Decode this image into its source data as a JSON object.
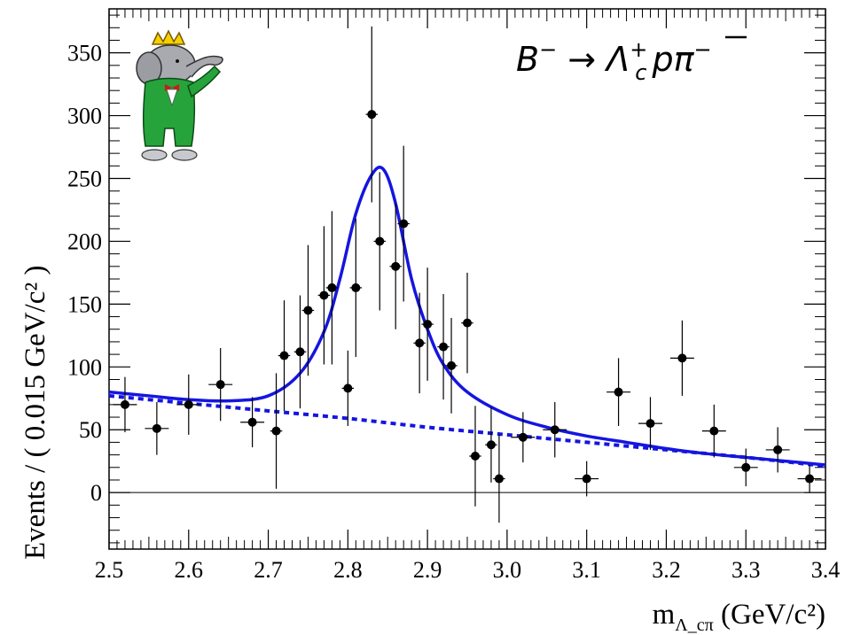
{
  "chart_data": {
    "type": "scatter",
    "title": "",
    "xlabel": {
      "main": "m",
      "sub": "Λ_cπ",
      "units": " (GeV/c²)"
    },
    "ylabel": "Events / ( 0.015 GeV/c² )",
    "xlim": [
      2.5,
      3.4
    ],
    "ylim": [
      -45,
      385
    ],
    "x_ticks": [
      "2.5",
      "2.6",
      "2.7",
      "2.8",
      "2.9",
      "3.0",
      "3.1",
      "3.2",
      "3.3",
      "3.4"
    ],
    "y_ticks": [
      "0",
      "50",
      "100",
      "150",
      "200",
      "250",
      "300",
      "350"
    ],
    "annotation": "B⁻ → Λ_c⁺ p̄ π⁻",
    "logo": "BaBar elephant",
    "colors": {
      "fit": "#1515e0",
      "points": "#000000"
    },
    "series": [
      {
        "kind": "data_points_with_errors",
        "points": [
          {
            "x": 2.52,
            "y": 70,
            "yerr": 22,
            "xerr": 0.015
          },
          {
            "x": 2.56,
            "y": 51,
            "yerr": 21,
            "xerr": 0.015
          },
          {
            "x": 2.6,
            "y": 70,
            "yerr": 24,
            "xerr": 0.015
          },
          {
            "x": 2.64,
            "y": 86,
            "yerr": 29,
            "xerr": 0.015
          },
          {
            "x": 2.68,
            "y": 56,
            "yerr": 20,
            "xerr": 0.015
          },
          {
            "x": 2.71,
            "y": 49,
            "yerr": 46,
            "xerr": 0.0075
          },
          {
            "x": 2.72,
            "y": 109,
            "yerr": 44,
            "xerr": 0.0075
          },
          {
            "x": 2.74,
            "y": 112,
            "yerr": 45,
            "xerr": 0.0075
          },
          {
            "x": 2.75,
            "y": 145,
            "yerr": 52,
            "xerr": 0.0075
          },
          {
            "x": 2.77,
            "y": 157,
            "yerr": 55,
            "xerr": 0.0075
          },
          {
            "x": 2.78,
            "y": 163,
            "yerr": 61,
            "xerr": 0.0075
          },
          {
            "x": 2.8,
            "y": 83,
            "yerr": 30,
            "xerr": 0.0075
          },
          {
            "x": 2.81,
            "y": 163,
            "yerr": 55,
            "xerr": 0.0075
          },
          {
            "x": 2.83,
            "y": 301,
            "yerr": 70,
            "xerr": 0.0075
          },
          {
            "x": 2.84,
            "y": 200,
            "yerr": 55,
            "xerr": 0.0075
          },
          {
            "x": 2.86,
            "y": 180,
            "yerr": 50,
            "xerr": 0.0075
          },
          {
            "x": 2.87,
            "y": 214,
            "yerr": 62,
            "xerr": 0.0075
          },
          {
            "x": 2.89,
            "y": 119,
            "yerr": 40,
            "xerr": 0.0075
          },
          {
            "x": 2.9,
            "y": 134,
            "yerr": 45,
            "xerr": 0.0075
          },
          {
            "x": 2.92,
            "y": 116,
            "yerr": 42,
            "xerr": 0.0075
          },
          {
            "x": 2.93,
            "y": 101,
            "yerr": 38,
            "xerr": 0.0075
          },
          {
            "x": 2.95,
            "y": 135,
            "yerr": 40,
            "xerr": 0.0075
          },
          {
            "x": 2.96,
            "y": 29,
            "yerr": 40,
            "xerr": 0.0075
          },
          {
            "x": 2.98,
            "y": 38,
            "yerr": 30,
            "xerr": 0.0075
          },
          {
            "x": 2.99,
            "y": 11,
            "yerr": 35,
            "xerr": 0.0075
          },
          {
            "x": 3.02,
            "y": 44,
            "yerr": 20,
            "xerr": 0.015
          },
          {
            "x": 3.06,
            "y": 50,
            "yerr": 22,
            "xerr": 0.015
          },
          {
            "x": 3.1,
            "y": 11,
            "yerr": 14,
            "xerr": 0.015
          },
          {
            "x": 3.14,
            "y": 80,
            "yerr": 27,
            "xerr": 0.015
          },
          {
            "x": 3.18,
            "y": 55,
            "yerr": 21,
            "xerr": 0.015
          },
          {
            "x": 3.22,
            "y": 107,
            "yerr": 30,
            "xerr": 0.015
          },
          {
            "x": 3.26,
            "y": 49,
            "yerr": 21,
            "xerr": 0.015
          },
          {
            "x": 3.3,
            "y": 20,
            "yerr": 15,
            "xerr": 0.015
          },
          {
            "x": 3.34,
            "y": 34,
            "yerr": 18,
            "xerr": 0.015
          },
          {
            "x": 3.38,
            "y": 11,
            "yerr": 11,
            "xerr": 0.015
          }
        ]
      },
      {
        "kind": "fit_total_solid",
        "x": [
          2.5,
          2.55,
          2.6,
          2.65,
          2.7,
          2.74,
          2.77,
          2.79,
          2.81,
          2.83,
          2.845,
          2.86,
          2.88,
          2.9,
          2.92,
          2.95,
          3.0,
          3.05,
          3.1,
          3.15,
          3.2,
          3.25,
          3.3,
          3.35,
          3.4
        ],
        "y": [
          80,
          77,
          74,
          73,
          77,
          95,
          128,
          170,
          222,
          253,
          257,
          230,
          170,
          130,
          102,
          80,
          62,
          52,
          45,
          40,
          35,
          31,
          28,
          25,
          22
        ]
      },
      {
        "kind": "fit_background_dashed",
        "x": [
          2.5,
          2.6,
          2.7,
          2.8,
          2.9,
          3.0,
          3.1,
          3.2,
          3.3,
          3.4
        ],
        "y": [
          77,
          71,
          65,
          59,
          52,
          46,
          40,
          34,
          28,
          21
        ]
      }
    ]
  }
}
